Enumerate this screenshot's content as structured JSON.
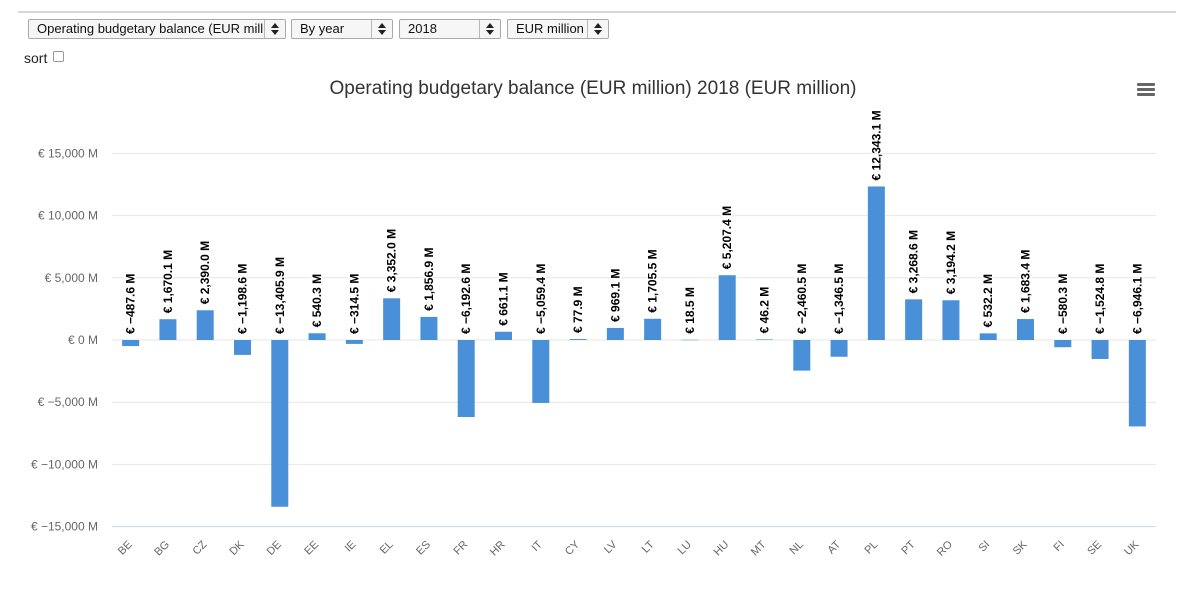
{
  "controls": {
    "indicator_select": "Operating budgetary balance (EUR million)",
    "period_select": "By year",
    "year_select": "2018",
    "unit_select": "EUR million",
    "sort_label": "sort",
    "sort_checked": false
  },
  "menu_icon": "hamburger-menu-icon",
  "colors": {
    "bar": "#4a90d9",
    "grid": "#e6e6e6",
    "axis": "#ccd6eb"
  },
  "chart_data": {
    "type": "bar",
    "title": "Operating budgetary balance (EUR million) 2018 (EUR million)",
    "categories": [
      "BE",
      "BG",
      "CZ",
      "DK",
      "DE",
      "EE",
      "IE",
      "EL",
      "ES",
      "FR",
      "HR",
      "IT",
      "CY",
      "LV",
      "LT",
      "LU",
      "HU",
      "MT",
      "NL",
      "AT",
      "PL",
      "PT",
      "RO",
      "SI",
      "SK",
      "FI",
      "SE",
      "UK"
    ],
    "values": [
      -487.6,
      1670.1,
      2390.0,
      -1198.6,
      -13405.9,
      540.3,
      -314.5,
      3352.0,
      1856.9,
      -6192.6,
      661.1,
      -5059.4,
      77.9,
      969.1,
      1705.5,
      18.5,
      5207.4,
      46.2,
      -2460.5,
      -1346.5,
      12343.1,
      3268.6,
      3194.2,
      532.2,
      1683.4,
      -580.3,
      -1524.8,
      -6946.1
    ],
    "data_labels": [
      "€ −487.6 M",
      "€ 1,670.1 M",
      "€ 2,390.0 M",
      "€ −1,198.6 M",
      "€ −13,405.9 M",
      "€ 540.3 M",
      "€ −314.5 M",
      "€ 3,352.0 M",
      "€ 1,856.9 M",
      "€ −6,192.6 M",
      "€ 661.1 M",
      "€ −5,059.4 M",
      "€ 77.9 M",
      "€ 969.1 M",
      "€ 1,705.5 M",
      "€ 18.5 M",
      "€ 5,207.4 M",
      "€ 46.2 M",
      "€ −2,460.5 M",
      "€ −1,346.5 M",
      "€ 12,343.1 M",
      "€ 3,268.6 M",
      "€ 3,194.2 M",
      "€ 532.2 M",
      "€ 1,683.4 M",
      "€ −580.3 M",
      "€ −1,524.8 M",
      "€ −6,946.1 M"
    ],
    "y_ticks": [
      15000,
      10000,
      5000,
      0,
      -5000,
      -10000,
      -15000
    ],
    "y_tick_labels": [
      "€ 15,000 M",
      "€ 10,000 M",
      "€ 5,000 M",
      "€ 0 M",
      "€ −5,000 M",
      "€ −10,000 M",
      "€ −15,000 M"
    ],
    "ylim": [
      -15000,
      15000
    ],
    "xlabel": "",
    "ylabel": "",
    "grid": true,
    "legend": "none"
  }
}
